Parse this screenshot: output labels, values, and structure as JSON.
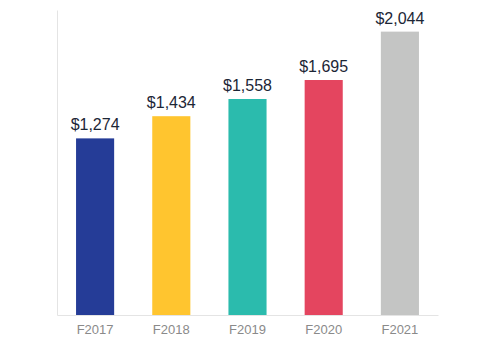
{
  "chart_data": {
    "type": "bar",
    "categories": [
      "F2017",
      "F2018",
      "F2019",
      "F2020",
      "F2021"
    ],
    "values": [
      1274,
      1434,
      1558,
      1695,
      2044
    ],
    "value_labels": [
      "$1,274",
      "$1,434",
      "$1,558",
      "$1,695",
      "$2,044"
    ],
    "colors": [
      "#253c97",
      "#ffc52f",
      "#2bbbad",
      "#e4455f",
      "#c4c5c4"
    ],
    "ylim": [
      0,
      2200
    ],
    "data_labels": true,
    "tick_labels": "x",
    "grid": false
  }
}
